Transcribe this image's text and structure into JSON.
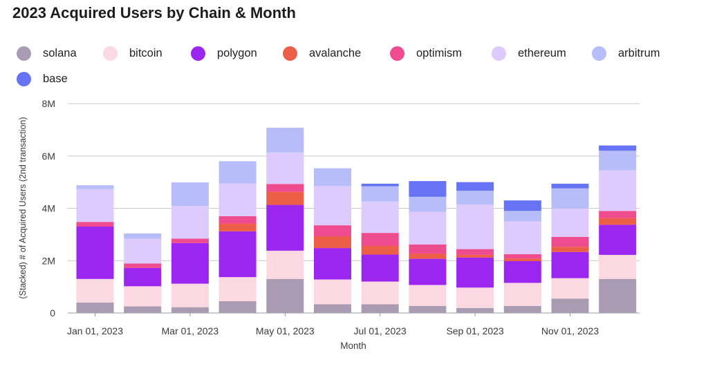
{
  "title": "2023 Acquired Users by Chain & Month",
  "chart_data": {
    "type": "bar",
    "stacked": true,
    "title": "2023 Acquired Users by Chain & Month",
    "xlabel": "Month",
    "ylabel": "(Stacked) # of Acquired Users (2nd transaction)",
    "ylim": [
      0,
      8000000
    ],
    "yticks": [
      0,
      2000000,
      4000000,
      6000000,
      8000000
    ],
    "ytick_labels": [
      "0",
      "2M",
      "4M",
      "6M",
      "8M"
    ],
    "xtick_labels": [
      {
        "label": "Jan 01, 2023",
        "index": 0
      },
      {
        "label": "Mar 01, 2023",
        "index": 2
      },
      {
        "label": "May 01, 2023",
        "index": 4
      },
      {
        "label": "Jul 01, 2023",
        "index": 6
      },
      {
        "label": "Sep 01, 2023",
        "index": 8
      },
      {
        "label": "Nov 01, 2023",
        "index": 10
      }
    ],
    "categories": [
      "2023-01",
      "2023-02",
      "2023-03",
      "2023-04",
      "2023-05",
      "2023-06",
      "2023-07",
      "2023-08",
      "2023-09",
      "2023-10",
      "2023-11",
      "2023-12"
    ],
    "grid": "horizontal",
    "legend_position": "top",
    "series": [
      {
        "name": "solana",
        "color": "#a99cb2",
        "values": [
          400000,
          250000,
          220000,
          450000,
          1300000,
          330000,
          330000,
          270000,
          190000,
          270000,
          550000,
          1300000
        ]
      },
      {
        "name": "bitcoin",
        "color": "#fbd8e2",
        "values": [
          900000,
          770000,
          900000,
          920000,
          1080000,
          950000,
          870000,
          800000,
          780000,
          880000,
          780000,
          920000
        ]
      },
      {
        "name": "polygon",
        "color": "#9b26f0",
        "values": [
          2000000,
          700000,
          1550000,
          1750000,
          1750000,
          1200000,
          1030000,
          1000000,
          1150000,
          830000,
          1000000,
          1150000
        ]
      },
      {
        "name": "avalanche",
        "color": "#ec5e48",
        "values": [
          0,
          0,
          0,
          300000,
          500000,
          450000,
          330000,
          200000,
          100000,
          100000,
          200000,
          250000
        ]
      },
      {
        "name": "optimism",
        "color": "#ef4b8f",
        "values": [
          180000,
          170000,
          170000,
          280000,
          300000,
          420000,
          500000,
          350000,
          220000,
          170000,
          380000,
          280000
        ]
      },
      {
        "name": "ethereum",
        "color": "#dccbfc",
        "values": [
          1250000,
          950000,
          1250000,
          1250000,
          1200000,
          1500000,
          1200000,
          1250000,
          1700000,
          1250000,
          1080000,
          1550000
        ]
      },
      {
        "name": "arbitrum",
        "color": "#b7bdf8",
        "values": [
          150000,
          200000,
          900000,
          850000,
          950000,
          680000,
          580000,
          570000,
          530000,
          400000,
          770000,
          750000
        ]
      },
      {
        "name": "base",
        "color": "#6673f5",
        "values": [
          0,
          0,
          0,
          0,
          0,
          0,
          100000,
          600000,
          330000,
          400000,
          180000,
          200000
        ]
      }
    ]
  }
}
